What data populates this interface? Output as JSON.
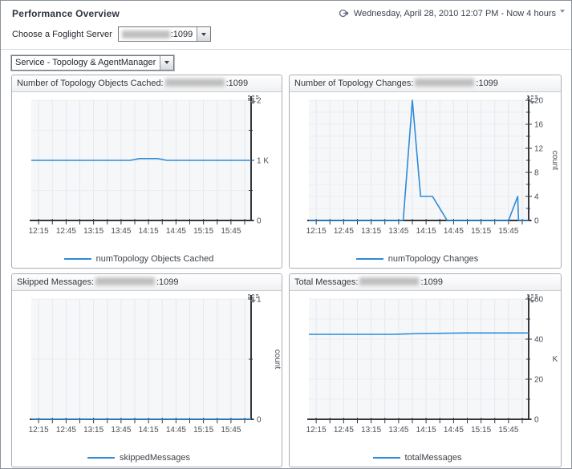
{
  "page": {
    "title": "Performance Overview"
  },
  "timebar": {
    "label": "Wednesday, April 28, 2010 12:07 PM - Now 4 hours"
  },
  "server_picker": {
    "label": "Choose a Foglight Server",
    "value_redacted": true,
    "value_suffix": ":1099"
  },
  "service_picker": {
    "value": "Service - Topology & AgentManager"
  },
  "colors": {
    "accent_line": "#2E8BD8",
    "grid_vertical": "#e2e8f1",
    "grid_horizontal": "#ededf1",
    "axis": "#35373c",
    "plot_bg": "#f6f7f9",
    "tick_label": "#4a4d53"
  },
  "chart_data": [
    {
      "name": "topology-objects-cached",
      "type": "line",
      "title_prefix": "Number of Topology Objects Cached:",
      "server_redacted": true,
      "title_suffix": ":1099",
      "x_start": "12:07",
      "x_end": "16:07",
      "x_tick_start": "12:15",
      "x_tick_step_minutes": 15,
      "x_tick_labels": [
        "12:15",
        "12:45",
        "13:15",
        "13:45",
        "14:15",
        "14:45",
        "15:15",
        "15:45"
      ],
      "y_max": 2,
      "y_minor_step": 0.5,
      "y_tick_labels": {
        "0": "0",
        "1": "1 K",
        "2": "2"
      },
      "y_axis_label": "",
      "y_axis_label_rotated": false,
      "legend": "numTopology Objects Cached",
      "series": [
        {
          "name": "numTopology Objects Cached",
          "points": [
            [
              "12:07",
              1.0
            ],
            [
              "13:55",
              1.0
            ],
            [
              "14:05",
              1.03
            ],
            [
              "14:25",
              1.03
            ],
            [
              "14:35",
              1.0
            ],
            [
              "16:07",
              1.0
            ]
          ]
        }
      ]
    },
    {
      "name": "topology-changes",
      "type": "line",
      "title_prefix": "Number of Topology Changes:",
      "server_redacted": true,
      "title_suffix": ":1099",
      "x_start": "12:07",
      "x_end": "16:07",
      "x_tick_start": "12:15",
      "x_tick_step_minutes": 15,
      "x_tick_labels": [
        "12:15",
        "12:45",
        "13:15",
        "13:45",
        "14:15",
        "14:45",
        "15:15",
        "15:45"
      ],
      "y_max": 20,
      "y_minor_step": 2,
      "y_tick_labels": {
        "0": "0",
        "4": "4",
        "8": "8",
        "12": "12",
        "16": "16",
        "20": "20"
      },
      "y_axis_label": "count",
      "y_axis_label_rotated": true,
      "legend": "numTopology Changes",
      "series": [
        {
          "name": "numTopology Changes",
          "points": [
            [
              "12:07",
              0
            ],
            [
              "13:50",
              0
            ],
            [
              "14:00",
              20
            ],
            [
              "14:09",
              4
            ],
            [
              "14:22",
              4
            ],
            [
              "14:38",
              0
            ],
            [
              "15:45",
              0
            ],
            [
              "15:55",
              4
            ],
            [
              "15:56",
              0
            ],
            [
              "16:07",
              0
            ]
          ]
        }
      ]
    },
    {
      "name": "skipped-messages",
      "type": "line",
      "title_prefix": "Skipped Messages:",
      "server_redacted": true,
      "title_suffix": ":1099",
      "x_start": "12:07",
      "x_end": "16:07",
      "x_tick_start": "12:15",
      "x_tick_step_minutes": 15,
      "x_tick_labels": [
        "12:15",
        "12:45",
        "13:15",
        "13:45",
        "14:15",
        "14:45",
        "15:15",
        "15:45"
      ],
      "y_max": 1,
      "y_minor_step": 0.5,
      "y_tick_labels": {
        "0": "0",
        "1": "1"
      },
      "y_axis_label": "count",
      "y_axis_label_rotated": true,
      "legend": "skippedMessages",
      "series": [
        {
          "name": "skippedMessages",
          "points": [
            [
              "12:07",
              0
            ],
            [
              "16:07",
              0
            ]
          ]
        }
      ]
    },
    {
      "name": "total-messages",
      "type": "line",
      "title_prefix": "Total Messages:",
      "server_redacted": true,
      "title_suffix": ":1099",
      "x_start": "12:07",
      "x_end": "16:07",
      "x_tick_start": "12:15",
      "x_tick_step_minutes": 15,
      "x_tick_labels": [
        "12:15",
        "12:45",
        "13:15",
        "13:45",
        "14:15",
        "14:45",
        "15:15",
        "15:45"
      ],
      "y_max": 60,
      "y_minor_step": 10,
      "y_tick_labels": {
        "0": "0",
        "20": "20",
        "40": "40",
        "60": "60"
      },
      "y_axis_label": "K",
      "y_axis_label_rotated": false,
      "legend": "totalMessages",
      "series": [
        {
          "name": "totalMessages",
          "points": [
            [
              "12:07",
              42.4
            ],
            [
              "13:40",
              42.4
            ],
            [
              "14:10",
              42.8
            ],
            [
              "15:00",
              43.1
            ],
            [
              "16:07",
              43.1
            ]
          ]
        }
      ]
    }
  ]
}
